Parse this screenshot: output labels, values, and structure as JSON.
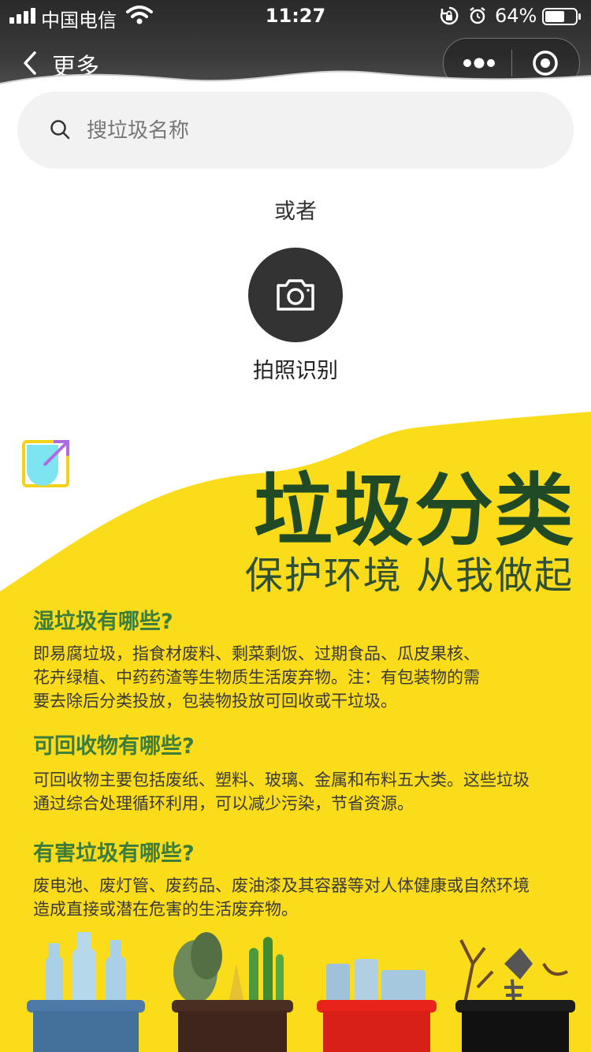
{
  "status_bar": {
    "carrier": "中国电信",
    "time": "11:27",
    "battery": "64%",
    "battery_level": 0.64
  },
  "nav": {
    "back_label": "更多"
  },
  "search": {
    "placeholder": "搜垃圾名称"
  },
  "or_text": "或者",
  "camera": {
    "label": "拍照识别"
  },
  "poster": {
    "title": "垃圾分类",
    "subtitle": "保护环境 从我做起",
    "sections": [
      {
        "heading": "湿垃圾有哪些?",
        "lines": [
          "即易腐垃圾，指食材废料、剩菜剩饭、过期食品、瓜皮果核、",
          "花卉绿植、中药药渣等生物质生活废弃物。注：有包装物的需",
          "要去除后分类投放，包装物投放可回收或干垃圾。"
        ]
      },
      {
        "heading": "可回收物有哪些?",
        "lines": [
          "可回收物主要包括废纸、塑料、玻璃、金属和布料五大类。这些垃圾",
          "通过综合处理循环利用，可以减少污染，节省资源。"
        ]
      },
      {
        "heading": "有害垃圾有哪些?",
        "lines": [
          "废电池、废灯管、废药品、废油漆及其容器等对人体健康或自然环境",
          "造成直接或潜在危害的生活废弃物。"
        ]
      }
    ]
  },
  "colors": {
    "poster_yellow": "#fbdc1a",
    "title_green": "#1f4a25",
    "heading_green": "#3a7d3c",
    "bin_blue": "#4d7aa8",
    "bin_brown": "#4a2e22",
    "bin_red": "#e8231c",
    "bin_black": "#1c1c1c"
  }
}
